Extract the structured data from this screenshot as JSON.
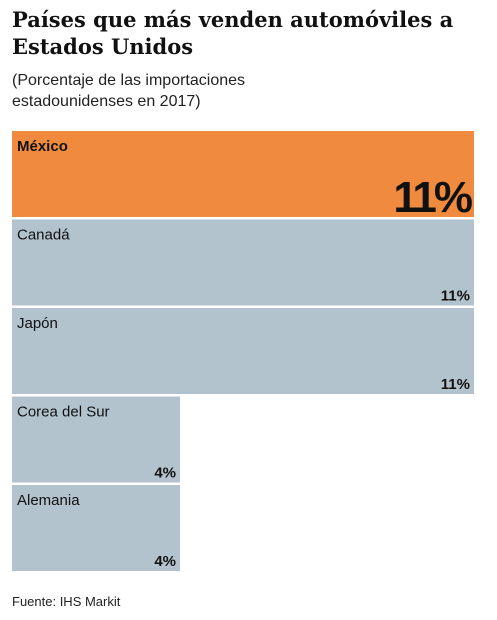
{
  "chart_data": {
    "type": "bar",
    "title": "Países que más venden automóviles a Estados Unidos",
    "subtitle": "(Porcentaje de las importaciones estadounidenses en 2017)",
    "categories": [
      "México",
      "Canadá",
      "Japón",
      "Corea del Sur",
      "Alemania"
    ],
    "values": [
      11,
      11,
      11,
      4,
      4
    ],
    "value_labels": [
      "11%",
      "11%",
      "11%",
      "4%",
      "4%"
    ],
    "colors": [
      "#ef8a3f",
      "#b3c3cd",
      "#b3c3cd",
      "#b3c3cd",
      "#b3c3cd"
    ],
    "source": "Fuente: IHS Markit"
  }
}
